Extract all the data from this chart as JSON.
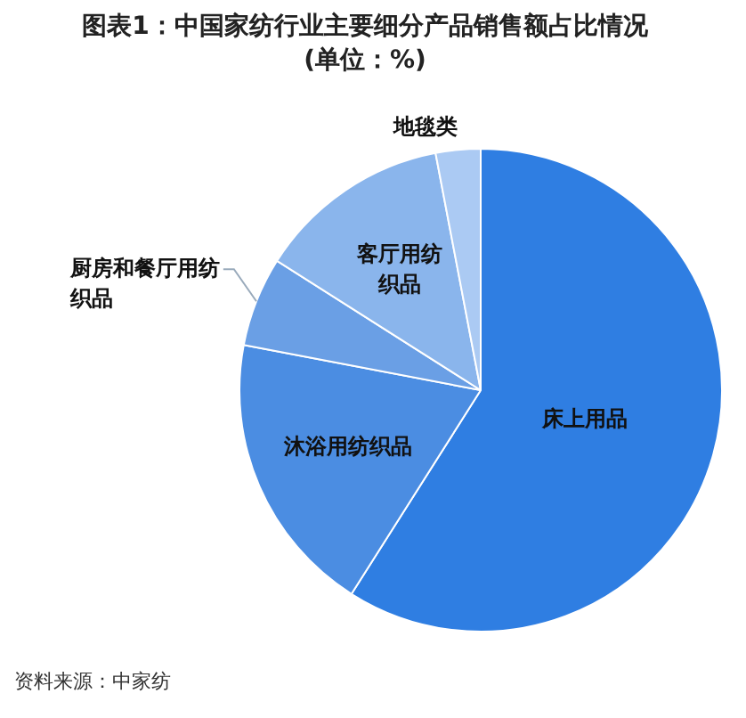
{
  "chart_data": {
    "type": "pie",
    "title": "图表1：中国家纺行业主要细分产品销售额占比情况(单位：%)",
    "categories": [
      "床上用品",
      "沐浴用纺织品",
      "厨房和餐厅用纺织品",
      "客厅用纺织品",
      "地毯类"
    ],
    "values": [
      59,
      19,
      6,
      13,
      3
    ],
    "colors": [
      "#2f7ee2",
      "#4b8de2",
      "#6a9fe5",
      "#8ab5ec",
      "#abcaf3"
    ],
    "legend": false,
    "annotations": [
      "资料来源：中家纺"
    ]
  }
}
